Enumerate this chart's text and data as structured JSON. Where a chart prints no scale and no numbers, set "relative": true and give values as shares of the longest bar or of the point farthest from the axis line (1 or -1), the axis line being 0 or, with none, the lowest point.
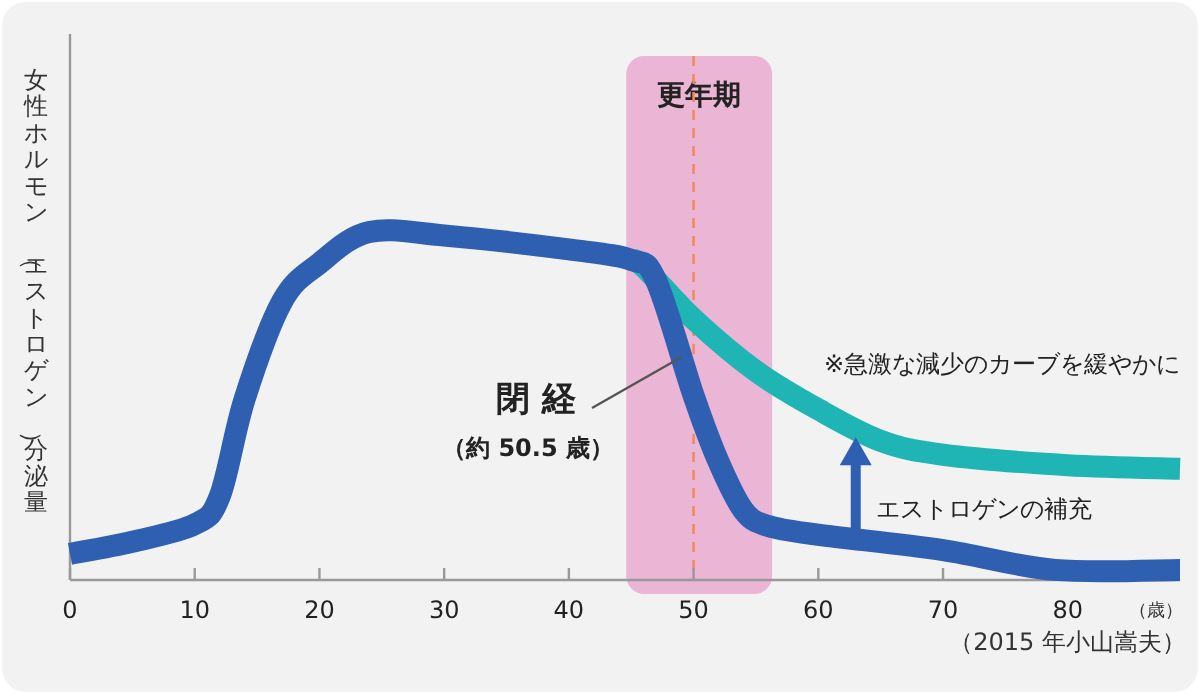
{
  "chart_data": {
    "type": "line",
    "relative": true,
    "xlabel": "（歳）",
    "ylabel": "女性ホルモン（エストロゲン）分泌量",
    "xlim": [
      0,
      89
    ],
    "xticks": [
      0,
      10,
      20,
      30,
      40,
      50,
      60,
      70,
      80
    ],
    "marker": "none",
    "line_style": "solid",
    "series": [
      {
        "color": "#2f5fb0",
        "x": [
          0,
          5,
          10,
          12,
          14,
          17,
          20,
          24,
          30,
          40,
          45,
          47,
          50,
          52,
          54,
          56,
          60,
          70,
          79,
          89
        ],
        "values": [
          0.075,
          0.11,
          0.16,
          0.24,
          0.52,
          0.8,
          0.91,
          1,
          0.99,
          0.95,
          0.92,
          0.86,
          0.53,
          0.34,
          0.2,
          0.155,
          0.13,
          0.086,
          0.029,
          0.029
        ]
      },
      {
        "color": "#1fb5b5",
        "x": [
          45,
          46,
          50,
          55,
          60,
          65,
          70,
          80,
          89
        ],
        "values": [
          0.92,
          0.9,
          0.75,
          0.6,
          0.49,
          0.4,
          0.36,
          0.33,
          0.32
        ]
      }
    ],
    "bands": [
      {
        "axis": "x",
        "from": 44.6,
        "to": 56.3,
        "label": "更年期",
        "color": "#ebb5d6"
      }
    ],
    "ref_lines": [
      {
        "axis": "x",
        "value": 50,
        "color": "#f08c5a",
        "line_style": "dashed"
      }
    ],
    "annotations": [
      {
        "text": "閉 経",
        "x": 49,
        "y": 0.64
      },
      "（約 50.5 歳）",
      "※急激な減少のカーブを緩やかに",
      {
        "text": "エストロゲンの補充",
        "x": 63,
        "y": 0.41
      },
      "（2015 年小山嵩夫）"
    ]
  }
}
